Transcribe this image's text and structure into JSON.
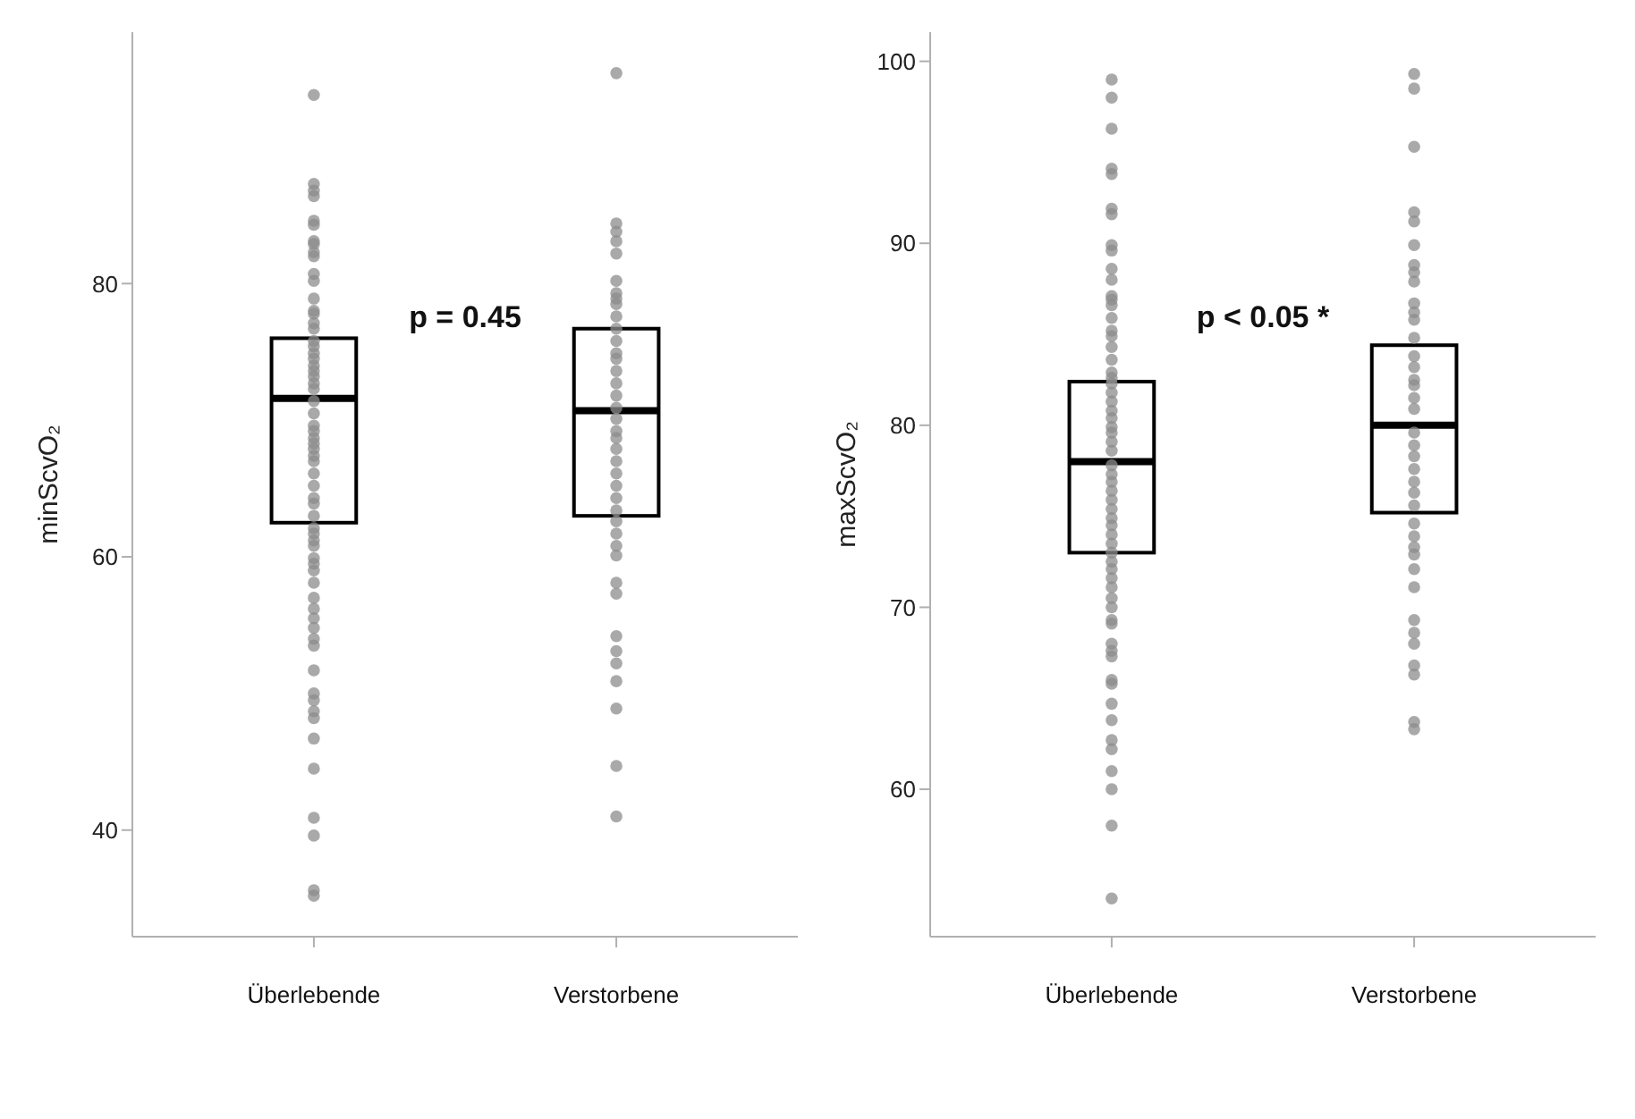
{
  "chart_data": [
    {
      "type": "box",
      "ylabel": "minScvO₂",
      "categories": [
        "Überlebende",
        "Verstorbene"
      ],
      "ylim": [
        32.2,
        98.4
      ],
      "yticks": [
        40,
        60,
        80
      ],
      "grid": false,
      "annotations": [
        "p = 0.45"
      ],
      "boxes": [
        {
          "low": 62.5,
          "q1": 62.5,
          "median": 71.6,
          "q3": 76.0,
          "high": 76.0
        },
        {
          "low": 63.0,
          "q1": 63.0,
          "median": 70.7,
          "q3": 76.7,
          "high": 76.7
        }
      ],
      "series": [
        {
          "type": "scatter",
          "color": "#8c8c8c",
          "x": [
            "Überlebende",
            "Überlebende",
            "Überlebende",
            "Überlebende",
            "Überlebende",
            "Überlebende",
            "Überlebende",
            "Überlebende",
            "Überlebende",
            "Überlebende",
            "Überlebende",
            "Überlebende",
            "Überlebende",
            "Überlebende",
            "Überlebende",
            "Überlebende",
            "Überlebende",
            "Überlebende",
            "Überlebende",
            "Überlebende",
            "Überlebende",
            "Überlebende",
            "Überlebende",
            "Überlebende",
            "Überlebende",
            "Überlebende",
            "Überlebende",
            "Überlebende",
            "Überlebende",
            "Überlebende",
            "Überlebende",
            "Überlebende",
            "Überlebende",
            "Überlebende",
            "Überlebende",
            "Überlebende",
            "Überlebende",
            "Überlebende",
            "Überlebende",
            "Überlebende",
            "Überlebende",
            "Überlebende",
            "Überlebende",
            "Überlebende",
            "Überlebende",
            "Überlebende",
            "Überlebende",
            "Überlebende",
            "Überlebende",
            "Überlebende",
            "Überlebende",
            "Überlebende",
            "Überlebende",
            "Überlebende",
            "Überlebende",
            "Überlebende",
            "Überlebende",
            "Überlebende",
            "Überlebende",
            "Überlebende",
            "Überlebende",
            "Überlebende",
            "Überlebende",
            "Überlebende",
            "Überlebende"
          ],
          "values": [
            93.8,
            87.3,
            86.8,
            86.4,
            84.6,
            84.3,
            83.1,
            82.9,
            82.3,
            82.0,
            80.7,
            80.2,
            78.9,
            78.0,
            77.8,
            77.1,
            76.7,
            75.8,
            75.4,
            74.9,
            74.5,
            74.0,
            73.6,
            73.2,
            72.7,
            72.3,
            71.4,
            70.5,
            69.6,
            69.2,
            68.7,
            68.3,
            67.9,
            67.4,
            67.0,
            66.1,
            65.2,
            64.3,
            63.9,
            63.0,
            62.1,
            61.7,
            61.2,
            60.8,
            59.9,
            59.5,
            59.0,
            58.1,
            57.0,
            56.2,
            55.5,
            54.8,
            54.0,
            53.5,
            51.7,
            50.0,
            49.5,
            48.7,
            48.2,
            46.7,
            44.5,
            40.9,
            39.6,
            35.6,
            35.2
          ]
        },
        {
          "type": "scatter",
          "color": "#8c8c8c",
          "x": [
            "Verstorbene",
            "Verstorbene",
            "Verstorbene",
            "Verstorbene",
            "Verstorbene",
            "Verstorbene",
            "Verstorbene",
            "Verstorbene",
            "Verstorbene",
            "Verstorbene",
            "Verstorbene",
            "Verstorbene",
            "Verstorbene",
            "Verstorbene",
            "Verstorbene",
            "Verstorbene",
            "Verstorbene",
            "Verstorbene",
            "Verstorbene",
            "Verstorbene",
            "Verstorbene",
            "Verstorbene",
            "Verstorbene",
            "Verstorbene",
            "Verstorbene",
            "Verstorbene",
            "Verstorbene",
            "Verstorbene",
            "Verstorbene",
            "Verstorbene",
            "Verstorbene",
            "Verstorbene",
            "Verstorbene",
            "Verstorbene",
            "Verstorbene",
            "Verstorbene",
            "Verstorbene",
            "Verstorbene",
            "Verstorbene",
            "Verstorbene"
          ],
          "values": [
            95.4,
            84.4,
            83.8,
            83.1,
            82.2,
            80.2,
            79.3,
            78.9,
            78.5,
            77.6,
            76.7,
            75.8,
            74.9,
            74.5,
            73.6,
            72.7,
            71.8,
            70.9,
            70.1,
            69.2,
            68.7,
            67.9,
            67.0,
            66.1,
            65.2,
            64.3,
            63.4,
            62.6,
            61.7,
            60.8,
            60.1,
            58.1,
            57.3,
            54.2,
            53.1,
            52.2,
            50.9,
            48.9,
            44.7,
            41.0
          ]
        }
      ]
    },
    {
      "type": "box",
      "ylabel": "maxScvO₂",
      "categories": [
        "Überlebende",
        "Verstorbene"
      ],
      "ylim": [
        51.9,
        101.6
      ],
      "yticks": [
        60,
        70,
        80,
        90,
        100
      ],
      "grid": false,
      "annotations": [
        "p < 0.05 *"
      ],
      "boxes": [
        {
          "low": 73.0,
          "q1": 73.0,
          "median": 78.0,
          "q3": 82.4,
          "high": 82.4
        },
        {
          "low": 75.2,
          "q1": 75.2,
          "median": 80.0,
          "q3": 84.4,
          "high": 84.4
        }
      ],
      "series": [
        {
          "type": "scatter",
          "color": "#8c8c8c",
          "x": [
            "Überlebende",
            "Überlebende",
            "Überlebende",
            "Überlebende",
            "Überlebende",
            "Überlebende",
            "Überlebende",
            "Überlebende",
            "Überlebende",
            "Überlebende",
            "Überlebende",
            "Überlebende",
            "Überlebende",
            "Überlebende",
            "Überlebende",
            "Überlebende",
            "Überlebende",
            "Überlebende",
            "Überlebende",
            "Überlebende",
            "Überlebende",
            "Überlebende",
            "Überlebende",
            "Überlebende",
            "Überlebende",
            "Überlebende",
            "Überlebende",
            "Überlebende",
            "Überlebende",
            "Überlebende",
            "Überlebende",
            "Überlebende",
            "Überlebende",
            "Überlebende",
            "Überlebende",
            "Überlebende",
            "Überlebende",
            "Überlebende",
            "Überlebende",
            "Überlebende",
            "Überlebende",
            "Überlebende",
            "Überlebende",
            "Überlebende",
            "Überlebende",
            "Überlebende",
            "Überlebende",
            "Überlebende",
            "Überlebende",
            "Überlebende",
            "Überlebende",
            "Überlebende",
            "Überlebende",
            "Überlebende",
            "Überlebende",
            "Überlebende",
            "Überlebende",
            "Überlebende",
            "Überlebende",
            "Überlebende",
            "Überlebende",
            "Überlebende"
          ],
          "values": [
            99.0,
            98.0,
            96.3,
            94.1,
            93.8,
            91.9,
            91.6,
            89.9,
            89.6,
            88.6,
            88.0,
            87.1,
            86.9,
            86.6,
            85.9,
            85.2,
            84.9,
            84.3,
            83.6,
            82.9,
            82.6,
            82.3,
            81.8,
            81.3,
            80.8,
            80.4,
            79.9,
            79.6,
            79.1,
            78.6,
            77.8,
            77.3,
            76.9,
            76.4,
            75.9,
            75.4,
            74.9,
            74.5,
            74.0,
            73.5,
            73.0,
            72.5,
            72.1,
            71.6,
            71.1,
            70.5,
            70.0,
            69.3,
            69.1,
            68.0,
            67.6,
            67.3,
            66.0,
            65.8,
            64.7,
            63.8,
            62.7,
            62.2,
            61.0,
            60.0,
            58.0,
            54.0
          ]
        },
        {
          "type": "scatter",
          "color": "#8c8c8c",
          "x": [
            "Verstorbene",
            "Verstorbene",
            "Verstorbene",
            "Verstorbene",
            "Verstorbene",
            "Verstorbene",
            "Verstorbene",
            "Verstorbene",
            "Verstorbene",
            "Verstorbene",
            "Verstorbene",
            "Verstorbene",
            "Verstorbene",
            "Verstorbene",
            "Verstorbene",
            "Verstorbene",
            "Verstorbene",
            "Verstorbene",
            "Verstorbene",
            "Verstorbene",
            "Verstorbene",
            "Verstorbene",
            "Verstorbene",
            "Verstorbene",
            "Verstorbene",
            "Verstorbene",
            "Verstorbene",
            "Verstorbene",
            "Verstorbene",
            "Verstorbene",
            "Verstorbene",
            "Verstorbene",
            "Verstorbene",
            "Verstorbene",
            "Verstorbene",
            "Verstorbene",
            "Verstorbene",
            "Verstorbene",
            "Verstorbene"
          ],
          "values": [
            99.3,
            98.5,
            95.3,
            91.7,
            91.2,
            89.9,
            88.8,
            88.4,
            87.9,
            86.7,
            86.2,
            85.8,
            84.8,
            83.8,
            83.2,
            82.5,
            82.2,
            81.5,
            80.9,
            79.6,
            78.9,
            78.3,
            77.6,
            76.9,
            76.3,
            75.6,
            74.6,
            73.9,
            73.3,
            72.9,
            72.1,
            71.1,
            69.3,
            68.6,
            68.0,
            66.8,
            66.3,
            63.7,
            63.3
          ]
        }
      ]
    }
  ]
}
